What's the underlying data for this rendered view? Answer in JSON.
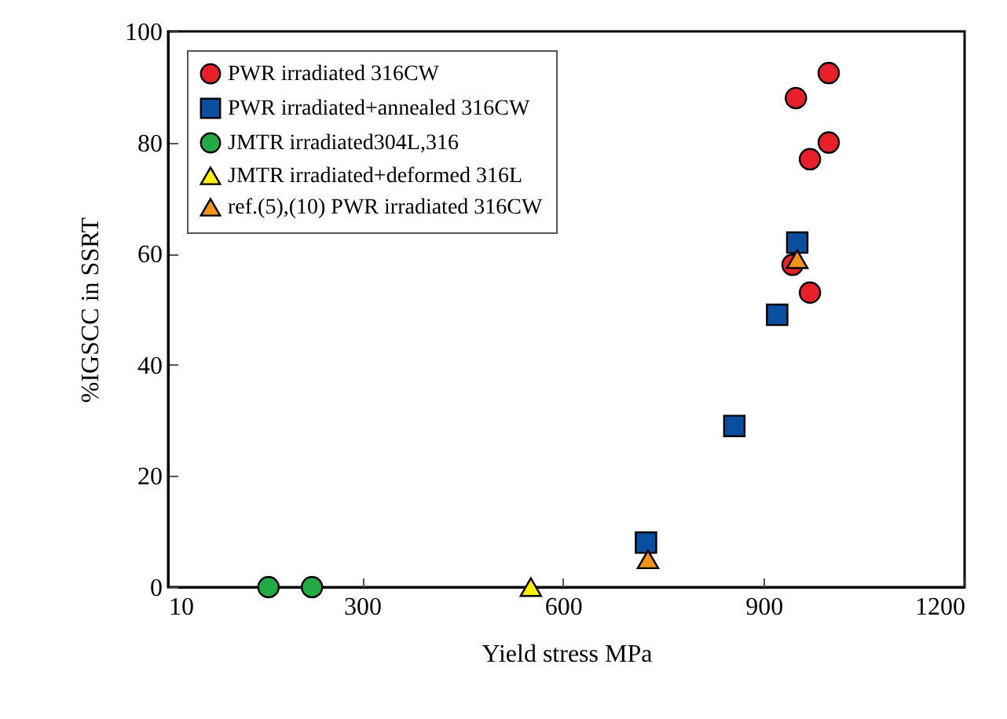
{
  "chart_data": {
    "type": "scatter",
    "xlabel": "Yield stress MPa",
    "ylabel": "%IGSCC in SSRT",
    "xlim": [
      10,
      1200
    ],
    "xticks": [
      10,
      300,
      600,
      900,
      1200
    ],
    "ylim": [
      0,
      100
    ],
    "yticks": [
      0,
      20,
      40,
      60,
      80,
      100
    ],
    "grid": false,
    "legend": "top left",
    "series": [
      {
        "name": "PWR irradiated 316CW",
        "color": "#e8202a",
        "marker": "circle",
        "x": [
          943,
          969,
          948,
          997,
          969,
          997
        ],
        "values": [
          58,
          53,
          88,
          92.5,
          77,
          80
        ]
      },
      {
        "name": "PWR irradiated+annealed 316CW",
        "color": "#0a4ea0",
        "marker": "square",
        "x": [
          724,
          856,
          920,
          950
        ],
        "values": [
          8,
          29,
          49,
          62
        ]
      },
      {
        "name": "JMTR irradiated304L,316",
        "color": "#22aa44",
        "marker": "circle",
        "x": [
          160,
          225
        ],
        "values": [
          0,
          0
        ]
      },
      {
        "name": "JMTR irradiated+deformed 316L",
        "color": "#ffee00",
        "marker": "triangle",
        "x": [
          552
        ],
        "values": [
          0
        ]
      },
      {
        "name": "ref.(5),(10) PWR irradiated 316CW",
        "color": "#f39419",
        "marker": "triangle",
        "x": [
          727,
          950
        ],
        "values": [
          5,
          59
        ]
      }
    ]
  }
}
